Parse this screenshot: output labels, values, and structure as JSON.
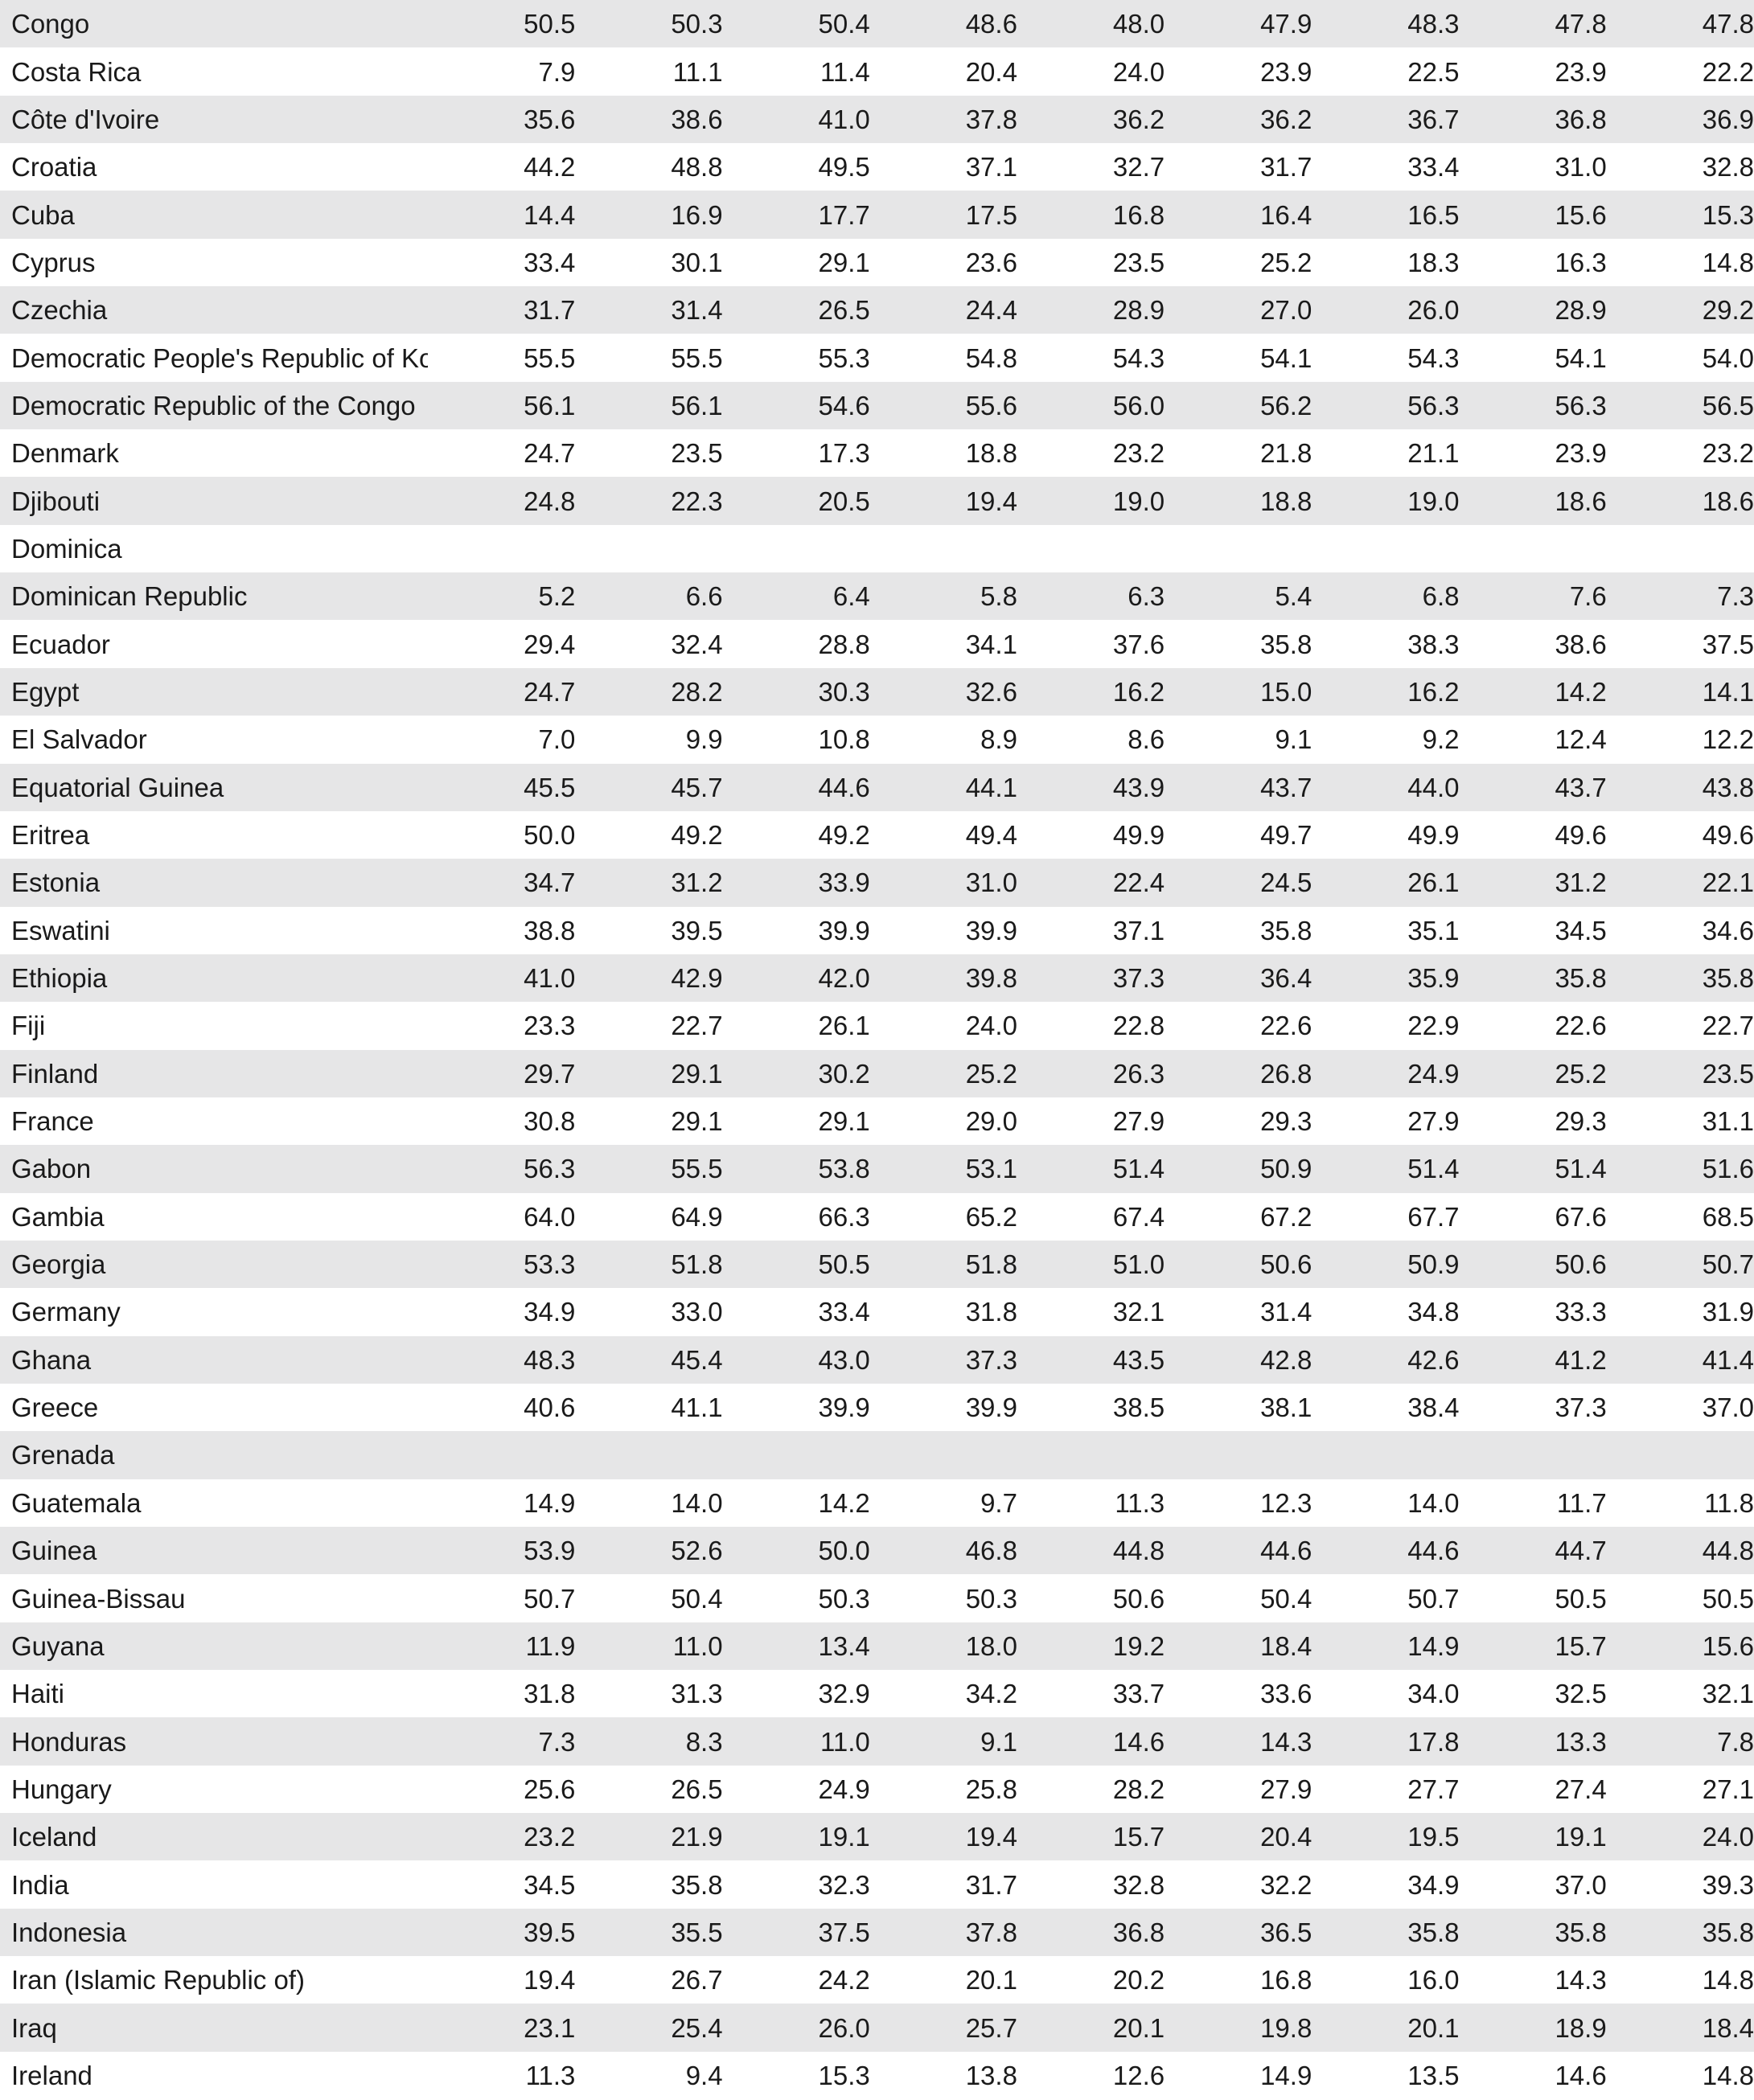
{
  "table": {
    "rows": [
      {
        "country": "Congo",
        "values": [
          "50.5",
          "50.3",
          "50.4",
          "48.6",
          "48.0",
          "47.9",
          "48.3",
          "47.8",
          "47.8"
        ]
      },
      {
        "country": "Costa Rica",
        "values": [
          "7.9",
          "11.1",
          "11.4",
          "20.4",
          "24.0",
          "23.9",
          "22.5",
          "23.9",
          "22.2"
        ]
      },
      {
        "country": "Côte d'Ivoire",
        "values": [
          "35.6",
          "38.6",
          "41.0",
          "37.8",
          "36.2",
          "36.2",
          "36.7",
          "36.8",
          "36.9"
        ]
      },
      {
        "country": "Croatia",
        "values": [
          "44.2",
          "48.8",
          "49.5",
          "37.1",
          "32.7",
          "31.7",
          "33.4",
          "31.0",
          "32.8"
        ]
      },
      {
        "country": "Cuba",
        "values": [
          "14.4",
          "16.9",
          "17.7",
          "17.5",
          "16.8",
          "16.4",
          "16.5",
          "15.6",
          "15.3"
        ]
      },
      {
        "country": "Cyprus",
        "values": [
          "33.4",
          "30.1",
          "29.1",
          "23.6",
          "23.5",
          "25.2",
          "18.3",
          "16.3",
          "14.8"
        ]
      },
      {
        "country": "Czechia",
        "values": [
          "31.7",
          "31.4",
          "26.5",
          "24.4",
          "28.9",
          "27.0",
          "26.0",
          "28.9",
          "29.2"
        ]
      },
      {
        "country": "Democratic People's Republic of Korea",
        "values": [
          "55.5",
          "55.5",
          "55.3",
          "54.8",
          "54.3",
          "54.1",
          "54.3",
          "54.1",
          "54.0"
        ]
      },
      {
        "country": "Democratic Republic of the Congo",
        "values": [
          "56.1",
          "56.1",
          "54.6",
          "55.6",
          "56.0",
          "56.2",
          "56.3",
          "56.3",
          "56.5"
        ]
      },
      {
        "country": "Denmark",
        "values": [
          "24.7",
          "23.5",
          "17.3",
          "18.8",
          "23.2",
          "21.8",
          "21.1",
          "23.9",
          "23.2"
        ]
      },
      {
        "country": "Djibouti",
        "values": [
          "24.8",
          "22.3",
          "20.5",
          "19.4",
          "19.0",
          "18.8",
          "19.0",
          "18.6",
          "18.6"
        ]
      },
      {
        "country": "Dominica",
        "values": [
          "",
          "",
          "",
          "",
          "",
          "",
          "",
          "",
          ""
        ]
      },
      {
        "country": "Dominican Republic",
        "values": [
          "5.2",
          "6.6",
          "6.4",
          "5.8",
          "6.3",
          "5.4",
          "6.8",
          "7.6",
          "7.3"
        ]
      },
      {
        "country": "Ecuador",
        "values": [
          "29.4",
          "32.4",
          "28.8",
          "34.1",
          "37.6",
          "35.8",
          "38.3",
          "38.6",
          "37.5"
        ]
      },
      {
        "country": "Egypt",
        "values": [
          "24.7",
          "28.2",
          "30.3",
          "32.6",
          "16.2",
          "15.0",
          "16.2",
          "14.2",
          "14.1"
        ]
      },
      {
        "country": "El Salvador",
        "values": [
          "7.0",
          "9.9",
          "10.8",
          "8.9",
          "8.6",
          "9.1",
          "9.2",
          "12.4",
          "12.2"
        ]
      },
      {
        "country": "Equatorial Guinea",
        "values": [
          "45.5",
          "45.7",
          "44.6",
          "44.1",
          "43.9",
          "43.7",
          "44.0",
          "43.7",
          "43.8"
        ]
      },
      {
        "country": "Eritrea",
        "values": [
          "50.0",
          "49.2",
          "49.2",
          "49.4",
          "49.9",
          "49.7",
          "49.9",
          "49.6",
          "49.6"
        ]
      },
      {
        "country": "Estonia",
        "values": [
          "34.7",
          "31.2",
          "33.9",
          "31.0",
          "22.4",
          "24.5",
          "26.1",
          "31.2",
          "22.1"
        ]
      },
      {
        "country": "Eswatini",
        "values": [
          "38.8",
          "39.5",
          "39.9",
          "39.9",
          "37.1",
          "35.8",
          "35.1",
          "34.5",
          "34.6"
        ]
      },
      {
        "country": "Ethiopia",
        "values": [
          "41.0",
          "42.9",
          "42.0",
          "39.8",
          "37.3",
          "36.4",
          "35.9",
          "35.8",
          "35.8"
        ]
      },
      {
        "country": "Fiji",
        "values": [
          "23.3",
          "22.7",
          "26.1",
          "24.0",
          "22.8",
          "22.6",
          "22.9",
          "22.6",
          "22.7"
        ]
      },
      {
        "country": "Finland",
        "values": [
          "29.7",
          "29.1",
          "30.2",
          "25.2",
          "26.3",
          "26.8",
          "24.9",
          "25.2",
          "23.5"
        ]
      },
      {
        "country": "France",
        "values": [
          "30.8",
          "29.1",
          "29.1",
          "29.0",
          "27.9",
          "29.3",
          "27.9",
          "29.3",
          "31.1"
        ]
      },
      {
        "country": "Gabon",
        "values": [
          "56.3",
          "55.5",
          "53.8",
          "53.1",
          "51.4",
          "50.9",
          "51.4",
          "51.4",
          "51.6"
        ]
      },
      {
        "country": "Gambia",
        "values": [
          "64.0",
          "64.9",
          "66.3",
          "65.2",
          "67.4",
          "67.2",
          "67.7",
          "67.6",
          "68.5"
        ]
      },
      {
        "country": "Georgia",
        "values": [
          "53.3",
          "51.8",
          "50.5",
          "51.8",
          "51.0",
          "50.6",
          "50.9",
          "50.6",
          "50.7"
        ]
      },
      {
        "country": "Germany",
        "values": [
          "34.9",
          "33.0",
          "33.4",
          "31.8",
          "32.1",
          "31.4",
          "34.8",
          "33.3",
          "31.9"
        ]
      },
      {
        "country": "Ghana",
        "values": [
          "48.3",
          "45.4",
          "43.0",
          "37.3",
          "43.5",
          "42.8",
          "42.6",
          "41.2",
          "41.4"
        ]
      },
      {
        "country": "Greece",
        "values": [
          "40.6",
          "41.1",
          "39.9",
          "39.9",
          "38.5",
          "38.1",
          "38.4",
          "37.3",
          "37.0"
        ]
      },
      {
        "country": "Grenada",
        "values": [
          "",
          "",
          "",
          "",
          "",
          "",
          "",
          "",
          ""
        ]
      },
      {
        "country": "Guatemala",
        "values": [
          "14.9",
          "14.0",
          "14.2",
          "9.7",
          "11.3",
          "12.3",
          "14.0",
          "11.7",
          "11.8"
        ]
      },
      {
        "country": "Guinea",
        "values": [
          "53.9",
          "52.6",
          "50.0",
          "46.8",
          "44.8",
          "44.6",
          "44.6",
          "44.7",
          "44.8"
        ]
      },
      {
        "country": "Guinea-Bissau",
        "values": [
          "50.7",
          "50.4",
          "50.3",
          "50.3",
          "50.6",
          "50.4",
          "50.7",
          "50.5",
          "50.5"
        ]
      },
      {
        "country": "Guyana",
        "values": [
          "11.9",
          "11.0",
          "13.4",
          "18.0",
          "19.2",
          "18.4",
          "14.9",
          "15.7",
          "15.6"
        ]
      },
      {
        "country": "Haiti",
        "values": [
          "31.8",
          "31.3",
          "32.9",
          "34.2",
          "33.7",
          "33.6",
          "34.0",
          "32.5",
          "32.1"
        ]
      },
      {
        "country": "Honduras",
        "values": [
          "7.3",
          "8.3",
          "11.0",
          "9.1",
          "14.6",
          "14.3",
          "17.8",
          "13.3",
          "7.8"
        ]
      },
      {
        "country": "Hungary",
        "values": [
          "25.6",
          "26.5",
          "24.9",
          "25.8",
          "28.2",
          "27.9",
          "27.7",
          "27.4",
          "27.1"
        ]
      },
      {
        "country": "Iceland",
        "values": [
          "23.2",
          "21.9",
          "19.1",
          "19.4",
          "15.7",
          "20.4",
          "19.5",
          "19.1",
          "24.0"
        ]
      },
      {
        "country": "India",
        "values": [
          "34.5",
          "35.8",
          "32.3",
          "31.7",
          "32.8",
          "32.2",
          "34.9",
          "37.0",
          "39.3"
        ]
      },
      {
        "country": "Indonesia",
        "values": [
          "39.5",
          "35.5",
          "37.5",
          "37.8",
          "36.8",
          "36.5",
          "35.8",
          "35.8",
          "35.8"
        ]
      },
      {
        "country": "Iran (Islamic Republic of)",
        "values": [
          "19.4",
          "26.7",
          "24.2",
          "20.1",
          "20.2",
          "16.8",
          "16.0",
          "14.3",
          "14.8"
        ]
      },
      {
        "country": "Iraq",
        "values": [
          "23.1",
          "25.4",
          "26.0",
          "25.7",
          "20.1",
          "19.8",
          "20.1",
          "18.9",
          "18.4"
        ]
      },
      {
        "country": "Ireland",
        "values": [
          "11.3",
          "9.4",
          "15.3",
          "13.8",
          "12.6",
          "14.9",
          "13.5",
          "14.6",
          "14.8"
        ]
      }
    ]
  }
}
